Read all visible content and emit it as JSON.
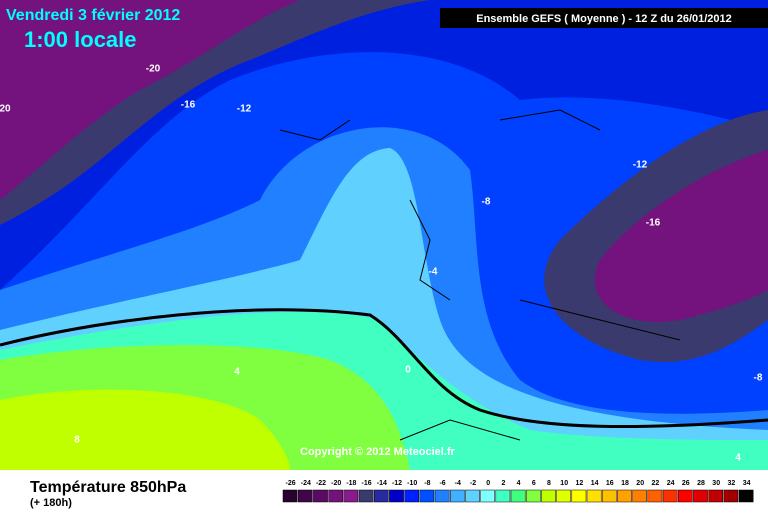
{
  "header": {
    "date": "Vendredi 3 février 2012",
    "time": "1:00 locale",
    "run": "Ensemble GEFS ( Moyenne )  -  12 Z du 26/01/2012"
  },
  "copyright": "Copyright © 2012 Meteociel.fr",
  "footer": {
    "title": "Température 850hPa",
    "lead": "(+ 180h)"
  },
  "contour_labels": [
    "-20",
    "-16",
    "-12",
    "20",
    "-12",
    "-8",
    "-16",
    "-4",
    "0",
    "4",
    "8",
    "-8",
    "4"
  ],
  "legend": {
    "values": [
      -26,
      -24,
      -22,
      -20,
      -18,
      -16,
      -14,
      -12,
      -10,
      -8,
      -6,
      -4,
      -2,
      0,
      2,
      4,
      6,
      8,
      10,
      12,
      14,
      16,
      18,
      20,
      22,
      24,
      26,
      28,
      30,
      32,
      34
    ],
    "colors": [
      "#2a0030",
      "#40064a",
      "#5a0a64",
      "#74127e",
      "#8a1a8e",
      "#3a3a6e",
      "#2a2aa0",
      "#0000c8",
      "#0020ff",
      "#0050ff",
      "#2080ff",
      "#40b0ff",
      "#60d0ff",
      "#80ffff",
      "#40ffc0",
      "#40ff80",
      "#80ff40",
      "#c0ff00",
      "#e0ff00",
      "#ffff00",
      "#ffe000",
      "#ffc000",
      "#ffa000",
      "#ff8000",
      "#ff6000",
      "#ff3000",
      "#ff0000",
      "#e00000",
      "#c00000",
      "#a00000",
      "#000000"
    ]
  }
}
